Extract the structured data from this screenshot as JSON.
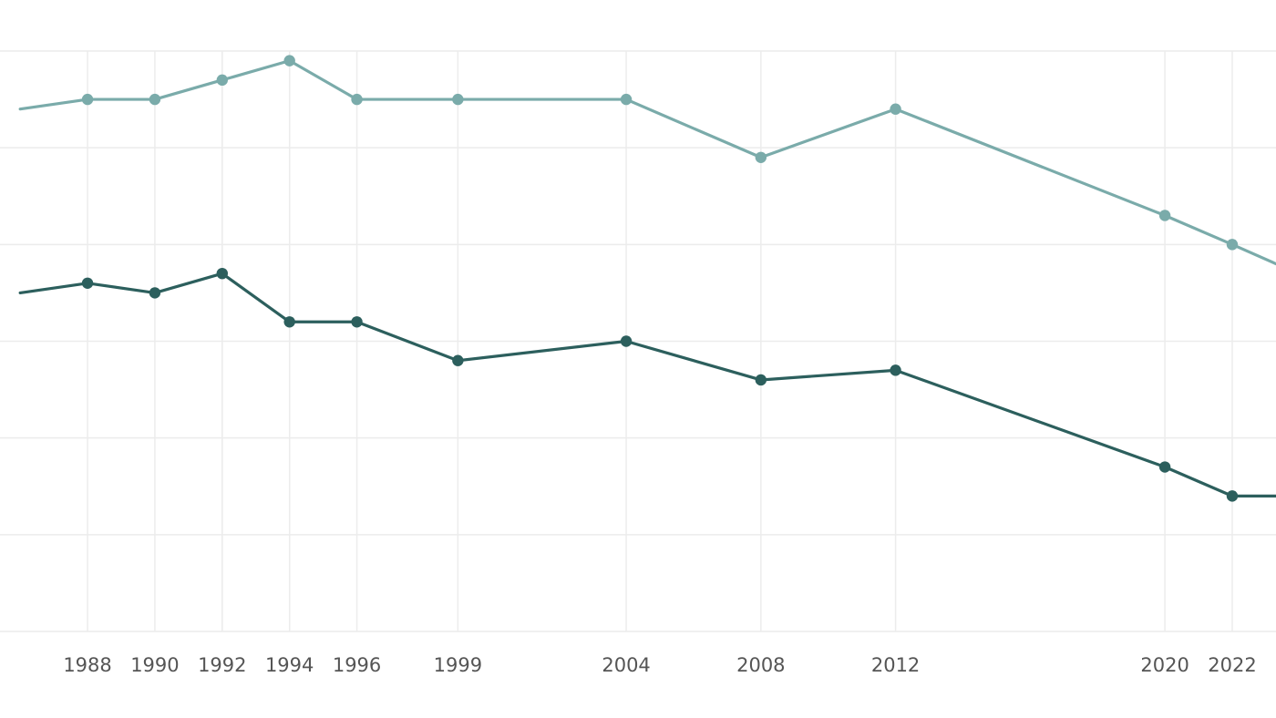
{
  "chart_data": {
    "type": "line",
    "x": [
      1986,
      1988,
      1990,
      1992,
      1994,
      1996,
      1999,
      2004,
      2008,
      2012,
      2020,
      2022,
      2023.3
    ],
    "x_tick_labels": [
      {
        "year": 1988,
        "label": "1988"
      },
      {
        "year": 1990,
        "label": "1990"
      },
      {
        "year": 1992,
        "label": "1992"
      },
      {
        "year": 1994,
        "label": "1994"
      },
      {
        "year": 1996,
        "label": "1996"
      },
      {
        "year": 1999,
        "label": "1999"
      },
      {
        "year": 2004,
        "label": "2004"
      },
      {
        "year": 2008,
        "label": "2008"
      },
      {
        "year": 2012,
        "label": "2012"
      },
      {
        "year": 2020,
        "label": "2020"
      },
      {
        "year": 2022,
        "label": "2022"
      }
    ],
    "xlim": [
      1985.4,
      2023.3
    ],
    "ylim": [
      0,
      6
    ],
    "y_gridlines": [
      0,
      1,
      2,
      3,
      4,
      5,
      6
    ],
    "grid": true,
    "series": [
      {
        "color": "#7aabaa",
        "marker_years": [
          1988,
          1990,
          1992,
          1994,
          1996,
          1999,
          2004,
          2008,
          2012,
          2020,
          2022
        ],
        "values": [
          5.4,
          5.5,
          5.5,
          5.7,
          5.9,
          5.5,
          5.5,
          5.5,
          4.9,
          5.4,
          4.3,
          4.0,
          3.8
        ]
      },
      {
        "color": "#2c5f5d",
        "marker_years": [
          1988,
          1990,
          1992,
          1994,
          1996,
          1999,
          2004,
          2008,
          2012,
          2020,
          2022
        ],
        "values": [
          3.5,
          3.6,
          3.5,
          3.7,
          3.2,
          3.2,
          2.8,
          3.0,
          2.6,
          2.7,
          1.7,
          1.4,
          1.4
        ]
      }
    ]
  }
}
